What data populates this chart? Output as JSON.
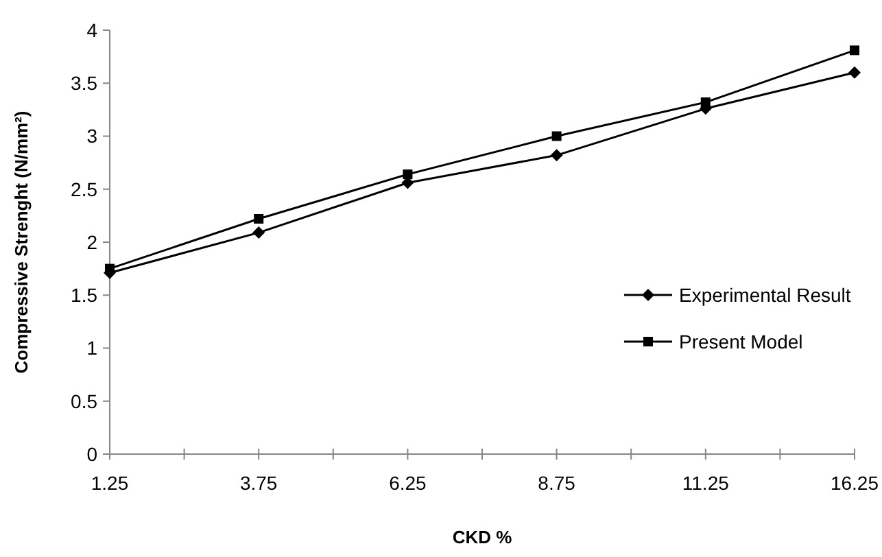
{
  "chart_data": {
    "type": "line",
    "xlabel": "CKD %",
    "ylabel": "Compressive Strenght (N/mm²)",
    "categories": [
      "1.25",
      "3.75",
      "6.25",
      "8.75",
      "11.25",
      "16.25"
    ],
    "series": [
      {
        "name": "Experimental Result",
        "color": "#000000",
        "marker": "diamond",
        "values": [
          1.71,
          2.09,
          2.56,
          2.82,
          3.26,
          3.6
        ]
      },
      {
        "name": "Present Model",
        "color": "#000000",
        "marker": "square",
        "values": [
          1.75,
          2.22,
          2.64,
          3.0,
          3.32,
          3.81
        ]
      }
    ],
    "ylim": [
      0,
      4
    ],
    "yticks": [
      0,
      0.5,
      1,
      1.5,
      2,
      2.5,
      3,
      3.5,
      4
    ],
    "grid": false,
    "legend": "right",
    "line_style": "solid"
  }
}
